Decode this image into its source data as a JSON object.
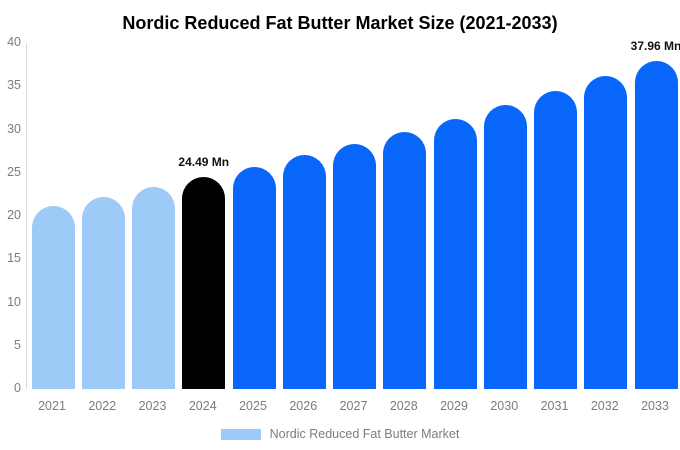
{
  "title": "Nordic Reduced Fat Butter Market Size (2021-2033)",
  "chart_data": {
    "type": "bar",
    "title": "Nordic Reduced Fat Butter Market Size (2021-2033)",
    "categories": [
      "2021",
      "2022",
      "2023",
      "2024",
      "2025",
      "2026",
      "2027",
      "2028",
      "2029",
      "2030",
      "2031",
      "2032",
      "2033"
    ],
    "values": [
      21.16,
      22.21,
      23.32,
      24.49,
      25.71,
      27.0,
      28.35,
      29.77,
      31.25,
      32.82,
      34.46,
      36.18,
      37.96
    ],
    "unit": "Mn",
    "bar_colors": [
      "#9ecaf7",
      "#9ecaf7",
      "#9ecaf7",
      "#000000",
      "#0866fa",
      "#0866fa",
      "#0866fa",
      "#0866fa",
      "#0866fa",
      "#0866fa",
      "#0866fa",
      "#0866fa",
      "#0866fa"
    ],
    "data_labels": [
      {
        "index": 3,
        "text": "24.49 Mn"
      },
      {
        "index": 12,
        "text": "37.96 Mn"
      }
    ],
    "xlabel": "",
    "ylabel": "",
    "ylim": [
      0,
      40
    ],
    "yticks": [
      0,
      5,
      10,
      15,
      20,
      25,
      30,
      35,
      40
    ],
    "grid": false,
    "legend_position": "bottom",
    "legend": [
      {
        "label": "Nordic Reduced Fat Butter Market",
        "color": "#9ecaf7"
      }
    ],
    "colors": {
      "historical": "#9ecaf7",
      "base_year": "#000000",
      "forecast": "#0866fa",
      "axis_line": "#dcdcdc",
      "tick_text": "#7c7c7c",
      "data_label_text": "#111111"
    }
  }
}
